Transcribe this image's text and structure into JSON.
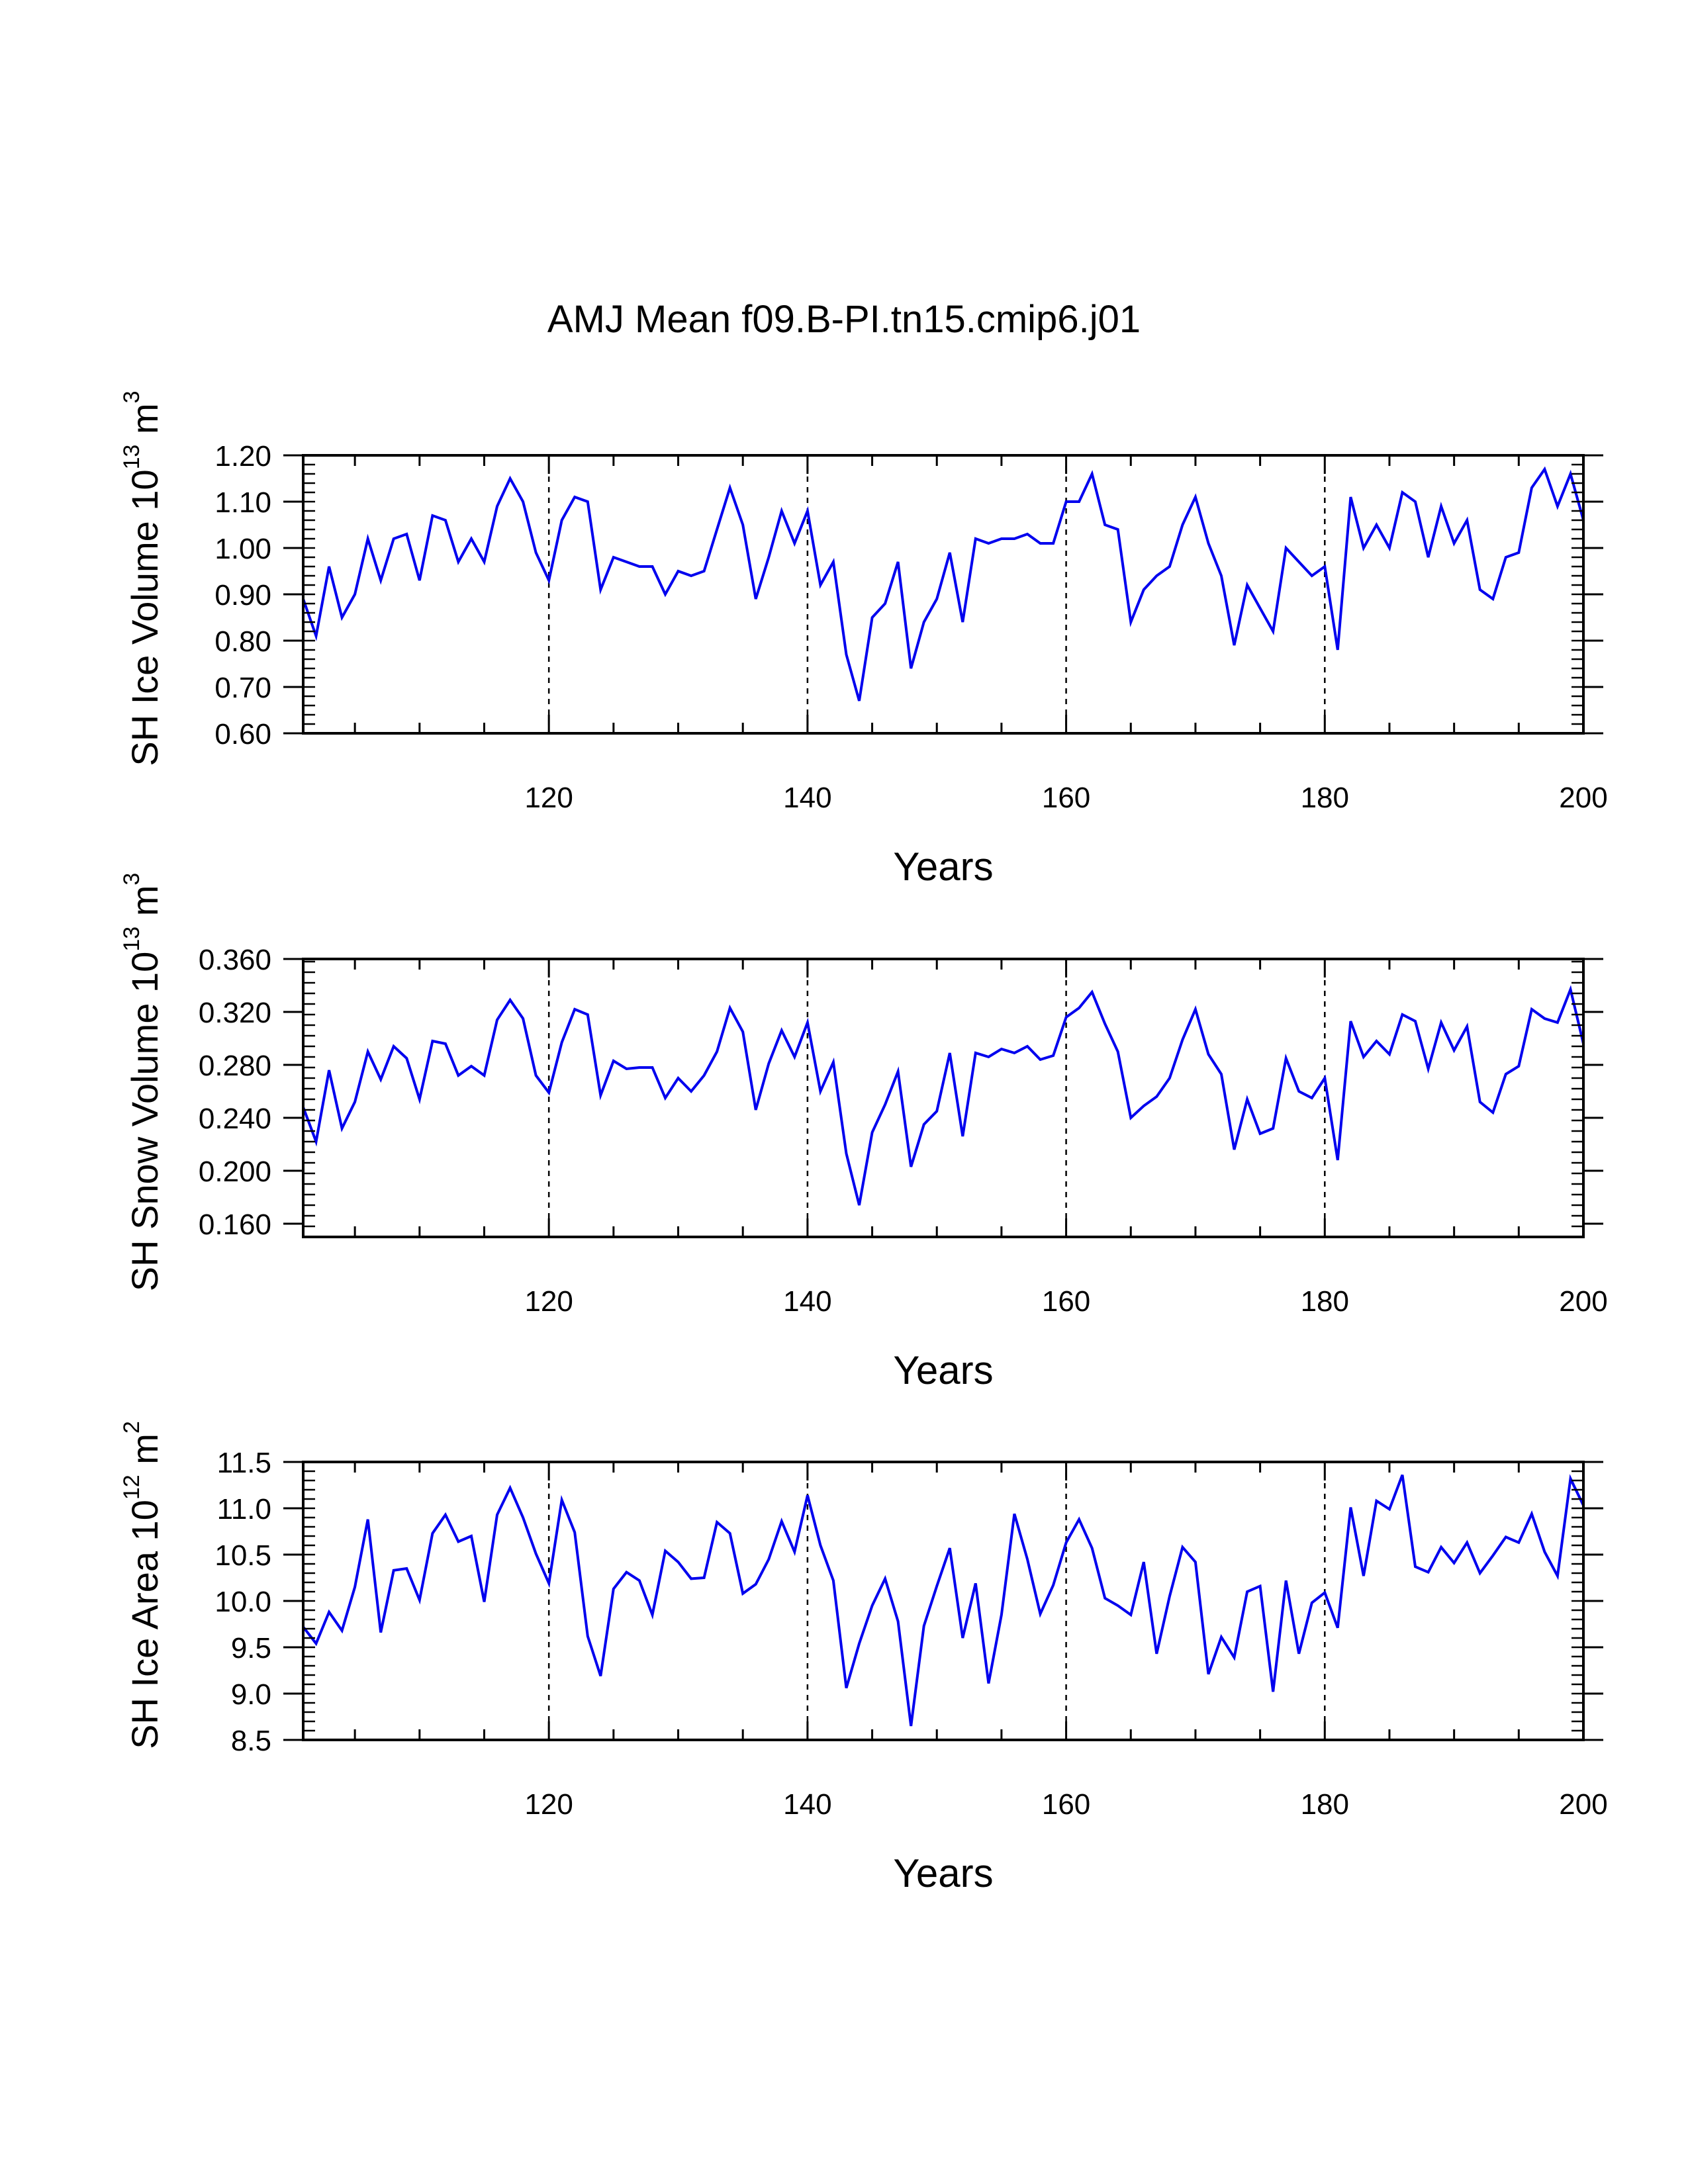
{
  "title": "AMJ Mean f09.B-PI.tn15.cmip6.j01",
  "colors": {
    "line": "#0000ee",
    "axis": "#000000",
    "refline": "#000000"
  },
  "chart_data": [
    {
      "type": "line",
      "ylabel": {
        "main": "SH Ice Volume 10",
        "sup": "13",
        "unit": " m",
        "unit_sup": "3"
      },
      "xlabel": "Years",
      "xlim": [
        101,
        200
      ],
      "ylim": [
        0.6,
        1.2
      ],
      "xticks": [
        120,
        140,
        160,
        180,
        200
      ],
      "xtick_labels": [
        "120",
        "140",
        "160",
        "180",
        "200"
      ],
      "yticks": [
        0.6,
        0.7,
        0.8,
        0.9,
        1.0,
        1.1,
        1.2
      ],
      "ytick_labels": [
        "0.60",
        "0.70",
        "0.80",
        "0.90",
        "1.00",
        "1.10",
        "1.20"
      ],
      "ref_lines_x": [
        120,
        140,
        160,
        180
      ],
      "series": [
        {
          "values": [
            0.89,
            0.81,
            0.96,
            0.85,
            0.9,
            1.02,
            0.93,
            1.02,
            1.03,
            0.93,
            1.07,
            1.06,
            0.97,
            1.02,
            0.97,
            1.09,
            1.15,
            1.1,
            0.99,
            0.93,
            1.06,
            1.11,
            1.1,
            0.91,
            0.98,
            0.97,
            0.96,
            0.96,
            0.9,
            0.95,
            0.94,
            0.95,
            1.04,
            1.13,
            1.05,
            0.89,
            0.98,
            1.08,
            1.01,
            1.08,
            0.92,
            0.97,
            0.77,
            0.67,
            0.85,
            0.88,
            0.97,
            0.74,
            0.84,
            0.89,
            0.99,
            0.84,
            1.02,
            1.01,
            1.02,
            1.02,
            1.03,
            1.01,
            1.01,
            1.1,
            1.1,
            1.16,
            1.05,
            1.04,
            0.84,
            0.91,
            0.94,
            0.96,
            1.05,
            1.11,
            1.01,
            0.94,
            0.79,
            0.92,
            0.87,
            0.82,
            1.0,
            0.97,
            0.94,
            0.96,
            0.78,
            1.11,
            1.0,
            1.05,
            1.0,
            1.12,
            1.1,
            0.98,
            1.09,
            1.01,
            1.06,
            0.91,
            0.89,
            0.98,
            0.99,
            1.13,
            1.17,
            1.09,
            1.16,
            1.06
          ]
        }
      ]
    },
    {
      "type": "line",
      "ylabel": {
        "main": "SH Snow Volume 10",
        "sup": "13",
        "unit": " m",
        "unit_sup": "3"
      },
      "xlabel": "Years",
      "xlim": [
        101,
        200
      ],
      "ylim": [
        0.15,
        0.36
      ],
      "xticks": [
        120,
        140,
        160,
        180,
        200
      ],
      "xtick_labels": [
        "120",
        "140",
        "160",
        "180",
        "200"
      ],
      "yticks": [
        0.16,
        0.2,
        0.24,
        0.28,
        0.32,
        0.36
      ],
      "ytick_labels": [
        "0.160",
        "0.200",
        "0.240",
        "0.280",
        "0.320",
        "0.360"
      ],
      "ref_lines_x": [
        120,
        140,
        160,
        180
      ],
      "series": [
        {
          "values": [
            0.248,
            0.222,
            0.276,
            0.232,
            0.252,
            0.29,
            0.269,
            0.294,
            0.285,
            0.254,
            0.298,
            0.296,
            0.272,
            0.279,
            0.272,
            0.314,
            0.329,
            0.315,
            0.272,
            0.259,
            0.297,
            0.322,
            0.318,
            0.257,
            0.283,
            0.277,
            0.278,
            0.278,
            0.255,
            0.27,
            0.26,
            0.272,
            0.29,
            0.323,
            0.305,
            0.246,
            0.281,
            0.306,
            0.286,
            0.312,
            0.26,
            0.282,
            0.213,
            0.174,
            0.229,
            0.25,
            0.275,
            0.203,
            0.235,
            0.245,
            0.289,
            0.226,
            0.289,
            0.286,
            0.292,
            0.289,
            0.294,
            0.284,
            0.287,
            0.316,
            0.323,
            0.335,
            0.311,
            0.29,
            0.24,
            0.249,
            0.256,
            0.27,
            0.299,
            0.322,
            0.288,
            0.273,
            0.216,
            0.254,
            0.228,
            0.232,
            0.285,
            0.26,
            0.255,
            0.27,
            0.208,
            0.313,
            0.286,
            0.298,
            0.288,
            0.318,
            0.313,
            0.277,
            0.312,
            0.291,
            0.309,
            0.252,
            0.244,
            0.273,
            0.279,
            0.322,
            0.315,
            0.312,
            0.337,
            0.296
          ]
        }
      ]
    },
    {
      "type": "line",
      "ylabel": {
        "main": "SH Ice Area 10",
        "sup": "12",
        "unit": " m",
        "unit_sup": "2"
      },
      "xlabel": "Years",
      "xlim": [
        101,
        200
      ],
      "ylim": [
        8.5,
        11.5
      ],
      "xticks": [
        120,
        140,
        160,
        180,
        200
      ],
      "xtick_labels": [
        "120",
        "140",
        "160",
        "180",
        "200"
      ],
      "yticks": [
        8.5,
        9.0,
        9.5,
        10.0,
        10.5,
        11.0,
        11.5
      ],
      "ytick_labels": [
        "8.5",
        "9.0",
        "9.5",
        "10.0",
        "10.5",
        "11.0",
        "11.5"
      ],
      "ref_lines_x": [
        120,
        140,
        160,
        180
      ],
      "series": [
        {
          "values": [
            9.72,
            9.54,
            9.88,
            9.68,
            10.15,
            10.88,
            9.66,
            10.33,
            10.35,
            10.01,
            10.73,
            10.93,
            10.64,
            10.7,
            9.99,
            10.93,
            11.22,
            10.9,
            10.51,
            10.19,
            11.09,
            10.74,
            9.62,
            9.19,
            10.13,
            10.31,
            10.22,
            9.85,
            10.54,
            10.42,
            10.24,
            10.25,
            10.85,
            10.73,
            10.08,
            10.18,
            10.45,
            10.86,
            10.53,
            11.14,
            10.6,
            10.22,
            9.06,
            9.54,
            9.95,
            10.24,
            9.78,
            8.65,
            9.73,
            10.16,
            10.57,
            9.6,
            10.19,
            9.11,
            9.85,
            10.94,
            10.45,
            9.86,
            10.17,
            10.63,
            10.88,
            10.57,
            10.03,
            9.95,
            9.85,
            10.42,
            9.43,
            10.05,
            10.58,
            10.42,
            9.21,
            9.61,
            9.39,
            10.1,
            10.16,
            9.02,
            10.22,
            9.43,
            9.98,
            10.09,
            9.71,
            11.01,
            10.27,
            11.08,
            10.99,
            11.36,
            10.37,
            10.31,
            10.58,
            10.41,
            10.63,
            10.3,
            10.49,
            10.69,
            10.63,
            10.94,
            10.53,
            10.27,
            11.32,
            11.03
          ]
        }
      ]
    }
  ]
}
